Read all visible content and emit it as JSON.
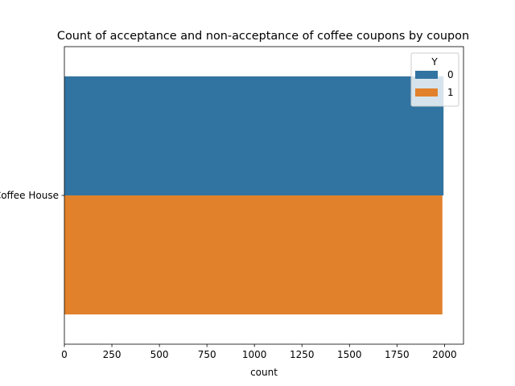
{
  "chart_data": {
    "type": "bar",
    "orientation": "horizontal",
    "title": "Count of acceptance and non-acceptance of coffee coupons by coupon",
    "xlabel": "count",
    "ylabel": "",
    "categories": [
      "Coffee House"
    ],
    "series": [
      {
        "name": "0",
        "values": [
          1995
        ],
        "color": "#3274a1"
      },
      {
        "name": "1",
        "values": [
          1989
        ],
        "color": "#e1812c"
      }
    ],
    "xlim": [
      0,
      2100
    ],
    "xticks": [
      0,
      250,
      500,
      750,
      1000,
      1250,
      1500,
      1750,
      2000
    ],
    "legend": {
      "title": "Y",
      "placement": "top-right"
    },
    "grid": false
  }
}
